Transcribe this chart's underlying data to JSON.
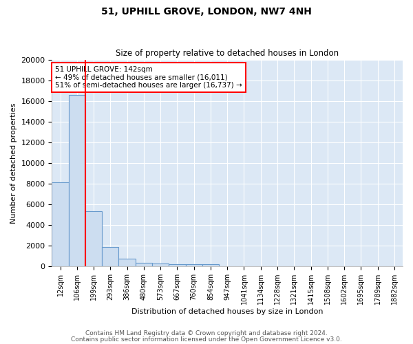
{
  "title1": "51, UPHILL GROVE, LONDON, NW7 4NH",
  "title2": "Size of property relative to detached houses in London",
  "xlabel": "Distribution of detached houses by size in London",
  "ylabel": "Number of detached properties",
  "bar_labels": [
    "12sqm",
    "106sqm",
    "199sqm",
    "293sqm",
    "386sqm",
    "480sqm",
    "573sqm",
    "667sqm",
    "760sqm",
    "854sqm",
    "947sqm",
    "1041sqm",
    "1134sqm",
    "1228sqm",
    "1321sqm",
    "1415sqm",
    "1508sqm",
    "1602sqm",
    "1695sqm",
    "1789sqm",
    "1882sqm"
  ],
  "bar_heights": [
    8100,
    16600,
    5300,
    1850,
    700,
    300,
    220,
    200,
    175,
    160,
    0,
    0,
    0,
    0,
    0,
    0,
    0,
    0,
    0,
    0,
    0
  ],
  "bar_color": "#ccddf0",
  "bar_edge_color": "#6699cc",
  "red_line_x": 1.5,
  "annotation_text": "51 UPHILL GROVE: 142sqm\n← 49% of detached houses are smaller (16,011)\n51% of semi-detached houses are larger (16,737) →",
  "annotation_box_color": "white",
  "annotation_box_edge": "red",
  "ylim": [
    0,
    20000
  ],
  "yticks": [
    0,
    2000,
    4000,
    6000,
    8000,
    10000,
    12000,
    14000,
    16000,
    18000,
    20000
  ],
  "footer1": "Contains HM Land Registry data © Crown copyright and database right 2024.",
  "footer2": "Contains public sector information licensed under the Open Government Licence v3.0.",
  "bg_color": "#ffffff",
  "plot_bg_color": "#dce8f5",
  "grid_color": "#ffffff"
}
